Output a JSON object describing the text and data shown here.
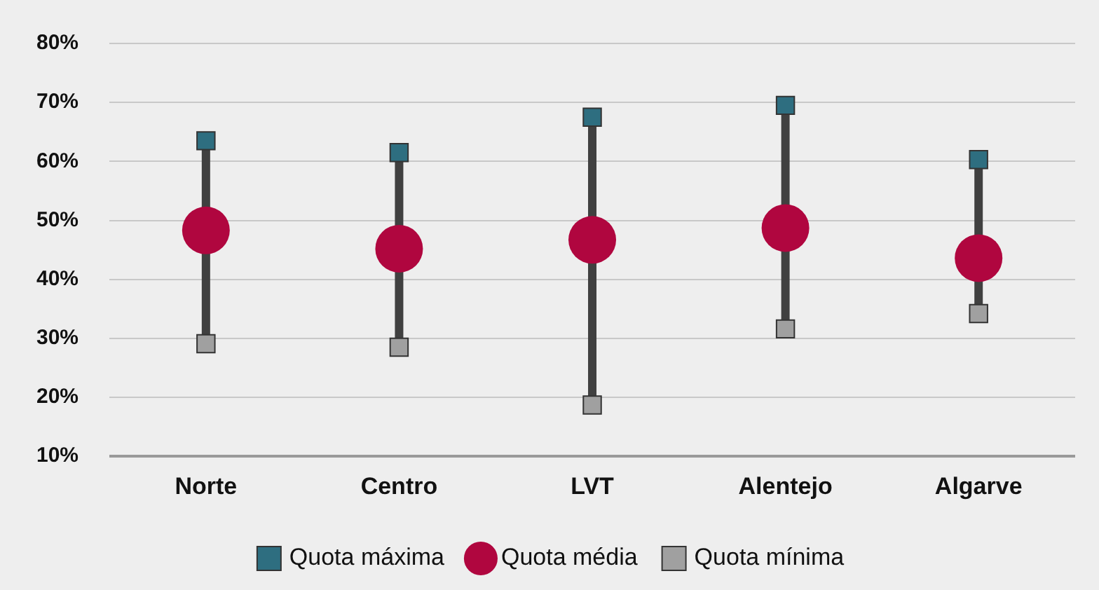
{
  "chart_data": {
    "type": "scatter",
    "categories": [
      "Norte",
      "Centro",
      "LVT",
      "Alentejo",
      "Algarve"
    ],
    "series": [
      {
        "name": "Quota máxima",
        "color": "#2e6e80",
        "marker": "square",
        "values": [
          63.5,
          61.5,
          67.5,
          69.5,
          60.3
        ]
      },
      {
        "name": "Quota média",
        "color": "#b0063f",
        "marker": "circle",
        "values": [
          48.3,
          45.2,
          46.7,
          48.7,
          43.6
        ]
      },
      {
        "name": "Quota mínima",
        "color": "#a0a0a0",
        "marker": "square",
        "values": [
          29.1,
          28.5,
          18.7,
          31.6,
          34.2
        ]
      }
    ],
    "ylim": [
      10,
      80
    ],
    "yticks": [
      {
        "value": 10,
        "label": "10%"
      },
      {
        "value": 20,
        "label": "20%"
      },
      {
        "value": 30,
        "label": "30%"
      },
      {
        "value": 40,
        "label": "40%"
      },
      {
        "value": 50,
        "label": "50%"
      },
      {
        "value": 60,
        "label": "60%"
      },
      {
        "value": 70,
        "label": "70%"
      },
      {
        "value": 80,
        "label": "80%"
      }
    ],
    "grid": "y",
    "legend": "bottom"
  }
}
